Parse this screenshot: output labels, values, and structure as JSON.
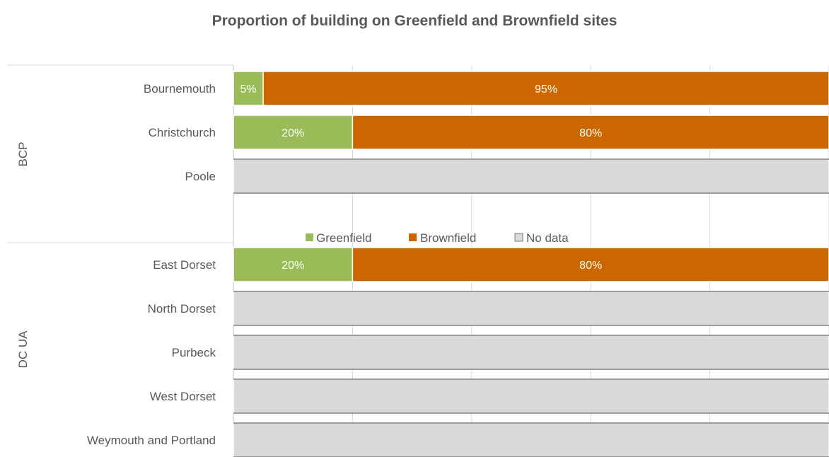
{
  "chart_data": {
    "type": "bar",
    "orientation": "horizontal",
    "stacked": true,
    "title": "Proportion of building on Greenfield and Brownfield sites",
    "groups": [
      {
        "name": "BCP",
        "categories": [
          "Bournemouth",
          "Christchurch",
          "Poole"
        ]
      },
      {
        "name": "DC UA",
        "categories": [
          "East Dorset",
          "North Dorset",
          "Purbeck",
          "West Dorset",
          "Weymouth and Portland"
        ]
      }
    ],
    "categories": [
      "Bournemouth",
      "Christchurch",
      "Poole",
      "East Dorset",
      "North Dorset",
      "Purbeck",
      "West Dorset",
      "Weymouth and Portland"
    ],
    "series": [
      {
        "name": "Greenfield",
        "color": "#9BBB59",
        "values": [
          5,
          20,
          0,
          20,
          0,
          0,
          0,
          0
        ],
        "labels": [
          "5%",
          "20%",
          "",
          "20%",
          "",
          "",
          "",
          ""
        ]
      },
      {
        "name": "Brownfield",
        "color": "#CC6600",
        "values": [
          95,
          80,
          0,
          80,
          0,
          0,
          0,
          0
        ],
        "labels": [
          "95%",
          "80%",
          "",
          "80%",
          "",
          "",
          "",
          ""
        ]
      },
      {
        "name": "No data",
        "color": "#D9D9D9",
        "values": [
          0,
          0,
          100,
          0,
          100,
          100,
          100,
          100
        ],
        "labels": [
          "",
          "",
          "",
          "",
          "",
          "",
          "",
          ""
        ]
      }
    ],
    "xlim": [
      0,
      100
    ],
    "grid": true,
    "legend": "center"
  }
}
